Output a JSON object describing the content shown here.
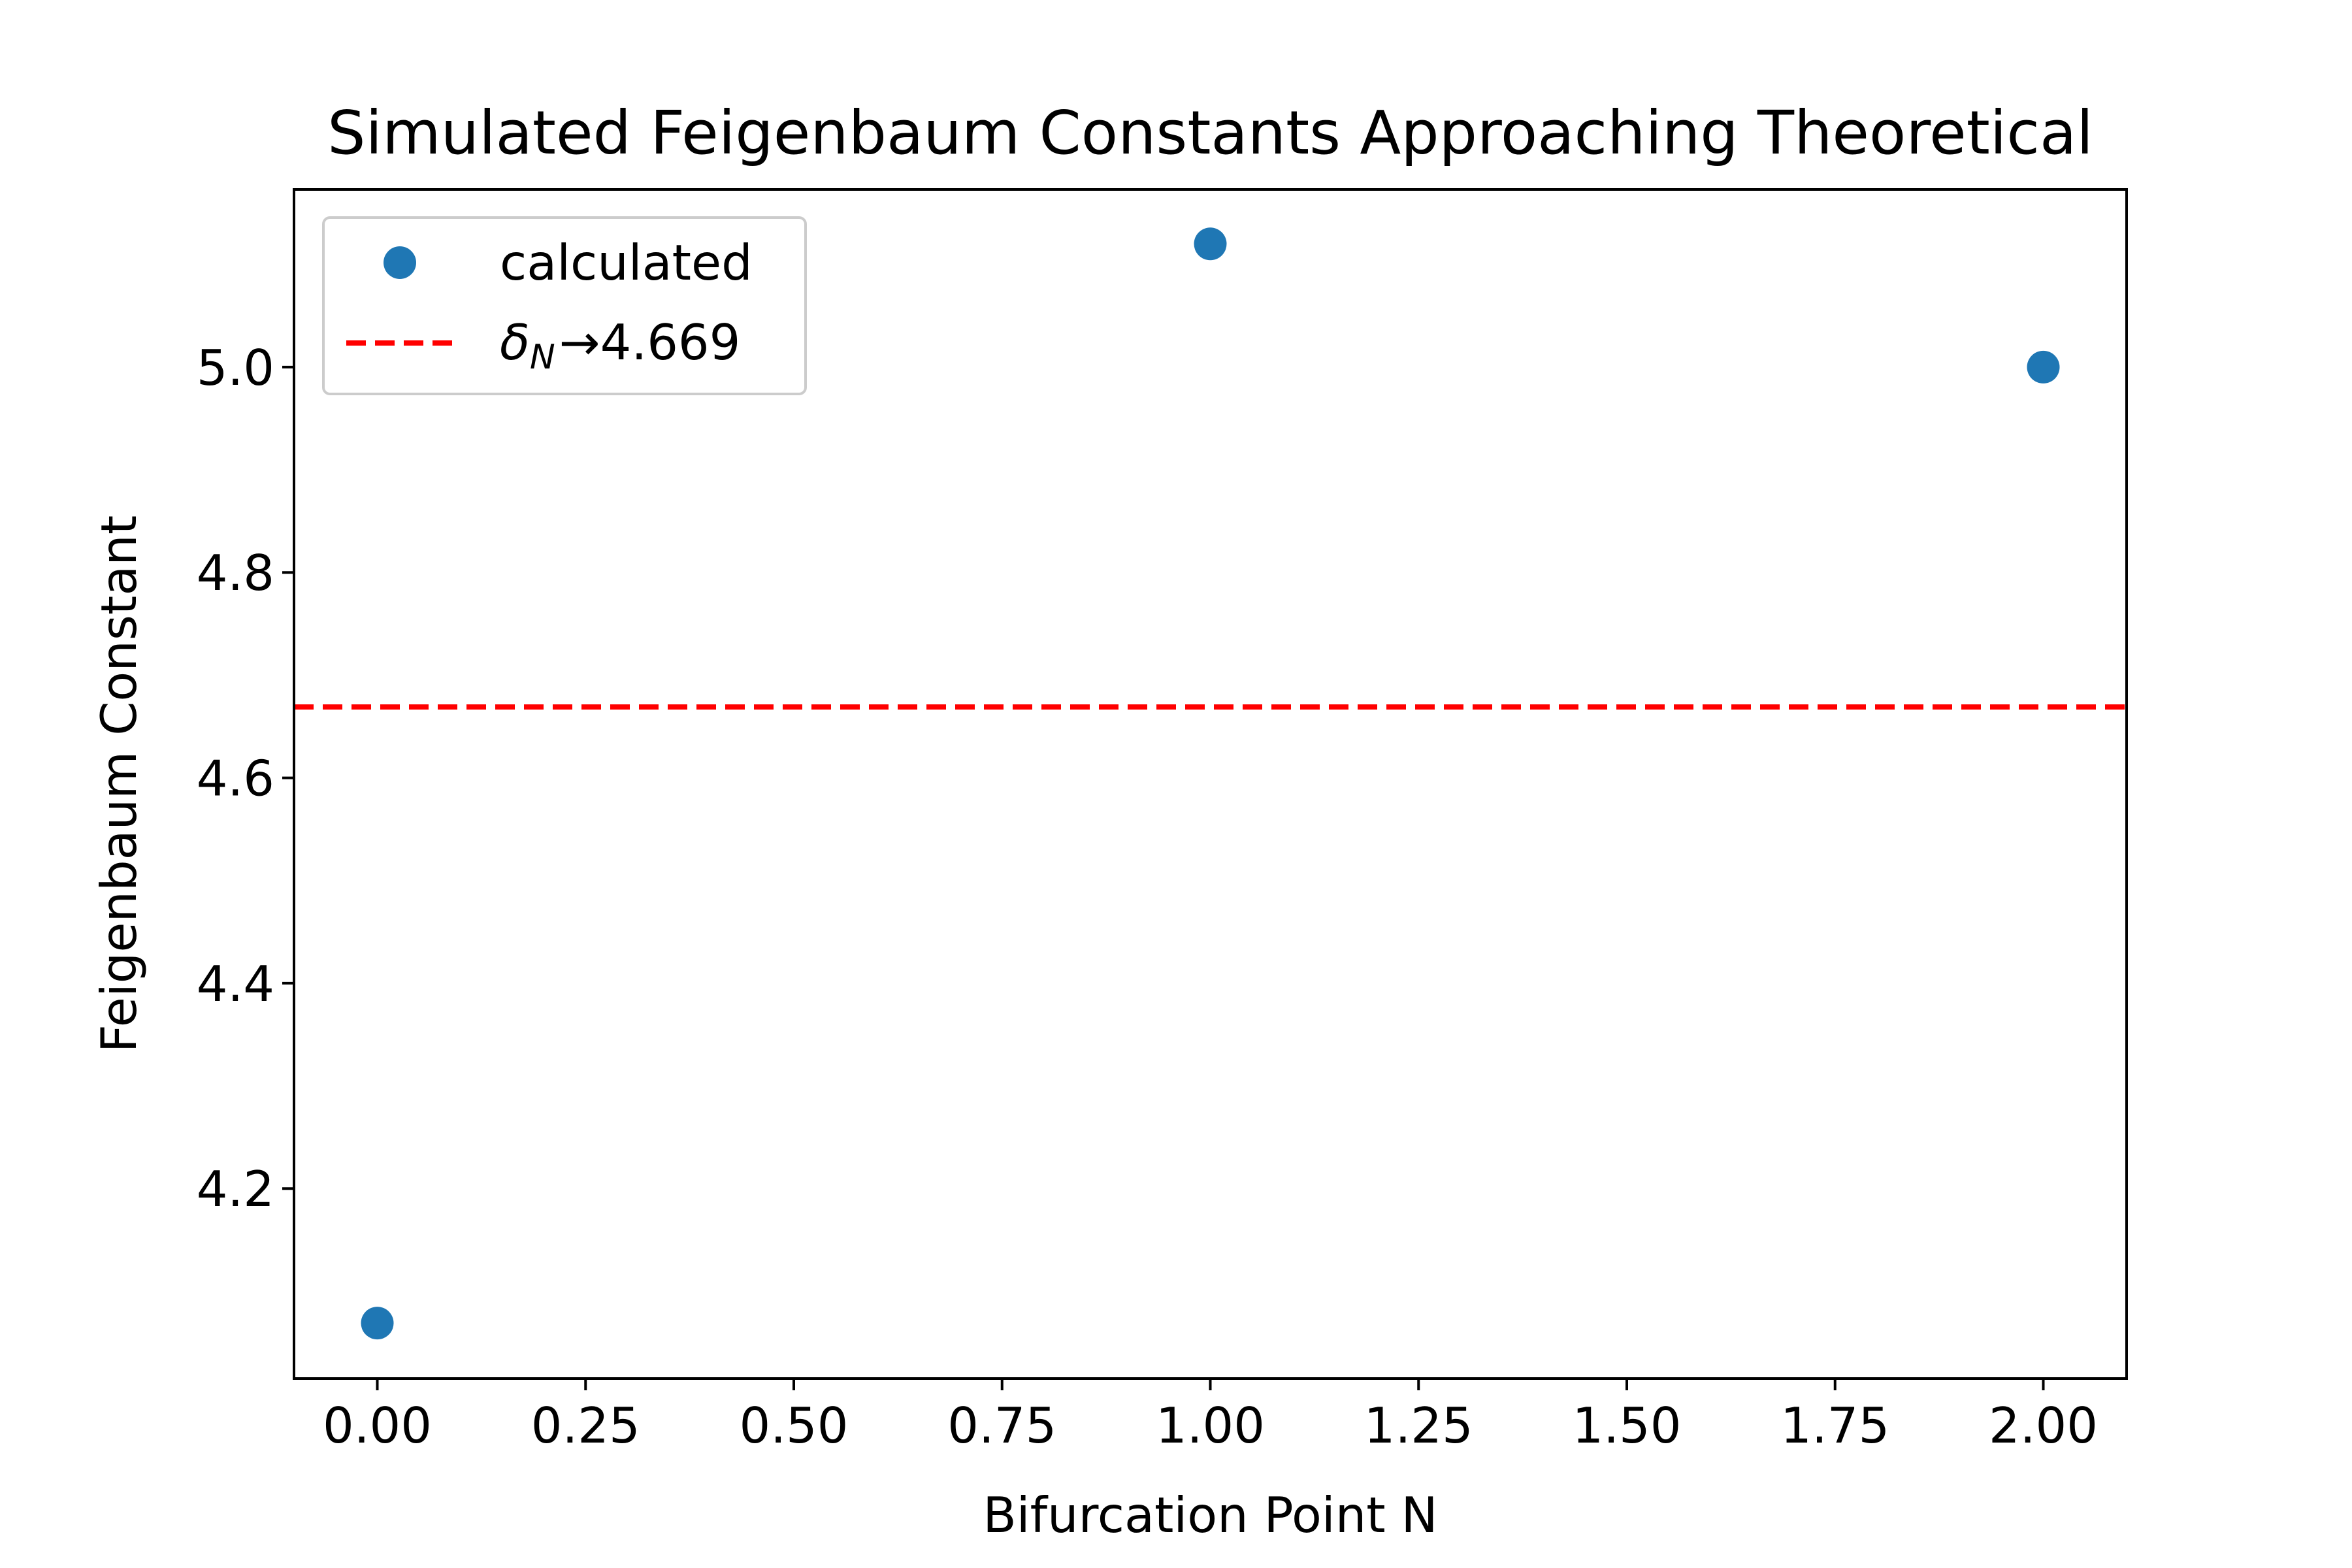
{
  "chart_data": {
    "type": "scatter",
    "title": "Simulated Feigenbaum Constants Approaching Theoretical",
    "xlabel": "Bifurcation Point N",
    "ylabel": "Feigenbaum Constant",
    "xlim": [
      -0.1,
      2.1
    ],
    "ylim": [
      4.015,
      5.173
    ],
    "xticks": [
      0.0,
      0.25,
      0.5,
      0.75,
      1.0,
      1.25,
      1.5,
      1.75,
      2.0
    ],
    "xtick_labels": [
      "0.00",
      "0.25",
      "0.50",
      "0.75",
      "1.00",
      "1.25",
      "1.50",
      "1.75",
      "2.00"
    ],
    "yticks": [
      4.2,
      4.4,
      4.6,
      4.8,
      5.0
    ],
    "ytick_labels": [
      "4.2",
      "4.4",
      "4.6",
      "4.8",
      "5.0"
    ],
    "grid": false,
    "legend_position": "upper-left",
    "series": [
      {
        "name": "calculated",
        "kind": "scatter",
        "color": "#1f77b4",
        "x": [
          0,
          1,
          2
        ],
        "y": [
          4.069,
          5.12,
          5.0
        ]
      }
    ],
    "reference_line": {
      "kind": "horizontal-dashed",
      "color": "#ff0000",
      "y": 4.669,
      "legend_symbol": "δ",
      "legend_subscript": "N",
      "legend_suffix": "→4.669"
    }
  }
}
